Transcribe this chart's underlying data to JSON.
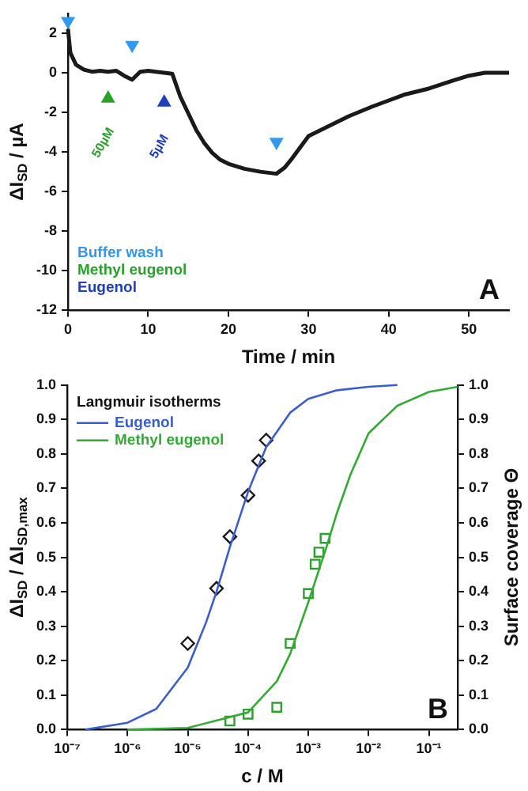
{
  "chart_data": [
    {
      "type": "line",
      "xlabel": "Time / min",
      "ylabel": "ΔI$_{SD}$ / µA",
      "xlim": [
        0,
        55
      ],
      "ylim": [
        -12,
        3
      ],
      "xticks": [
        0,
        10,
        20,
        30,
        40,
        50
      ],
      "yticks": [
        -12,
        -10,
        -8,
        -6,
        -4,
        -2,
        0,
        2
      ],
      "legend": "bottom left",
      "annotations": [
        "A",
        {
          "text": "50µM",
          "x": 5,
          "y": -1.3
        },
        {
          "text": "5µM",
          "x": 12,
          "y": -1.5
        }
      ],
      "series": [
        {
          "color": "#1a1a1a",
          "marker": "none",
          "x": [
            0,
            0.3,
            1,
            2,
            3,
            4,
            5,
            6,
            7,
            8,
            9,
            10,
            11,
            12,
            13,
            14,
            15,
            16,
            17,
            18,
            19,
            20,
            22,
            24,
            26,
            27,
            28,
            30,
            32,
            35,
            38,
            40,
            42,
            45,
            48,
            50,
            52,
            55
          ],
          "values": [
            2.2,
            1.0,
            0.4,
            0.15,
            0.05,
            0.1,
            0.05,
            0.1,
            -0.15,
            -0.35,
            0.05,
            0.1,
            0.05,
            0.0,
            -0.05,
            -1.2,
            -2.05,
            -2.9,
            -3.55,
            -4.05,
            -4.4,
            -4.6,
            -4.85,
            -5.0,
            -5.1,
            -4.8,
            -4.3,
            -3.2,
            -2.8,
            -2.2,
            -1.7,
            -1.4,
            -1.1,
            -0.8,
            -0.4,
            -0.15,
            0.0,
            0.0
          ]
        },
        {
          "type": "scatter",
          "name": "Buffer wash",
          "color": "#3399ee",
          "marker": "triangle",
          "x": [
            0,
            8,
            26
          ],
          "values": [
            2.6,
            1.4,
            -3.5
          ]
        },
        {
          "type": "scatter",
          "name": "Methyl eugenol",
          "color": "#2ca02c",
          "marker": "triangle",
          "x": [
            5
          ],
          "values": [
            -1.3
          ]
        },
        {
          "type": "scatter",
          "name": "Eugenol",
          "color": "#1f3fbf",
          "marker": "triangle",
          "x": [
            12
          ],
          "values": [
            -1.5
          ]
        }
      ]
    },
    {
      "type": "line",
      "xlabel": "c / M",
      "ylabel": "ΔI$_{SD}$ / ΔI$_{SD,max}$",
      "y2label": "Surface coverage Θ",
      "legend_title": "Langmuir isotherms",
      "log": "x",
      "xlim": [
        1e-07,
        0.3
      ],
      "ylim": [
        0,
        1
      ],
      "y2lim": [
        0,
        1
      ],
      "xticks": [
        {
          "value": 1e-07,
          "label": "10⁻⁷"
        },
        {
          "value": 1e-06,
          "label": "10⁻⁶"
        },
        {
          "value": 1e-05,
          "label": "10⁻⁵"
        },
        {
          "value": 0.0001,
          "label": "10⁻⁴"
        },
        {
          "value": 0.001,
          "label": "10⁻³"
        },
        {
          "value": 0.01,
          "label": "10⁻²"
        },
        {
          "value": 0.1,
          "label": "10⁻¹"
        }
      ],
      "yticks": [
        {
          "value": 0,
          "label": "0.0"
        },
        0.1,
        0.2,
        0.3,
        0.4,
        0.5,
        0.6,
        0.7,
        0.8,
        0.9,
        {
          "value": 1,
          "label": "1.0"
        }
      ],
      "y2ticks": [
        {
          "value": 0,
          "label": "0.0"
        },
        0.1,
        0.2,
        0.3,
        0.4,
        0.5,
        0.6,
        0.7,
        0.8,
        0.9,
        {
          "value": 1,
          "label": "1.0"
        }
      ],
      "legend": "top left",
      "annotations": [
        "B"
      ],
      "series": [
        {
          "name": "Eugenol",
          "color": "#3a5fcd",
          "marker": "none",
          "x": [
            2e-07,
            1e-06,
            3e-06,
            1e-05,
            2e-05,
            3e-05,
            5e-05,
            0.0001,
            0.0002,
            0.0005,
            0.001,
            0.003,
            0.01,
            0.03
          ],
          "values": [
            0.0,
            0.02,
            0.06,
            0.18,
            0.31,
            0.4,
            0.53,
            0.69,
            0.82,
            0.92,
            0.96,
            0.985,
            0.995,
            1.0
          ]
        },
        {
          "name": "Methyl eugenol",
          "color": "#33aa33",
          "marker": "none",
          "x": [
            1e-06,
            1e-05,
            0.0001,
            0.0003,
            0.0005,
            0.001,
            0.002,
            0.003,
            0.005,
            0.01,
            0.03,
            0.1,
            0.3
          ],
          "values": [
            0.0,
            0.005,
            0.05,
            0.14,
            0.22,
            0.37,
            0.53,
            0.63,
            0.74,
            0.86,
            0.94,
            0.98,
            0.995
          ]
        },
        {
          "type": "scatter",
          "color": "#1a1a1a",
          "marker": "diamond",
          "x": [
            1e-05,
            3e-05,
            5e-05,
            0.0001,
            0.00015,
            0.0002
          ],
          "values": [
            0.25,
            0.41,
            0.56,
            0.68,
            0.78,
            0.84
          ]
        },
        {
          "type": "scatter",
          "color": "#2ca02c",
          "marker": "square",
          "x": [
            5e-05,
            0.0001,
            0.0003,
            0.0005,
            0.001,
            0.0013,
            0.0015,
            0.0019
          ],
          "values": [
            0.025,
            0.045,
            0.065,
            0.25,
            0.395,
            0.48,
            0.515,
            0.555
          ]
        }
      ]
    }
  ]
}
